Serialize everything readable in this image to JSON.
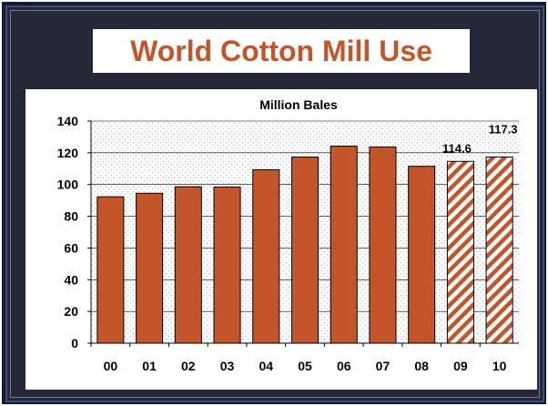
{
  "slide": {
    "title": "World Cotton Mill Use"
  },
  "chart_data": {
    "type": "bar",
    "title": "Million Bales",
    "categories": [
      "00",
      "01",
      "02",
      "03",
      "04",
      "05",
      "06",
      "07",
      "08",
      "09",
      "10"
    ],
    "values": [
      92.3,
      94.5,
      98.6,
      98.4,
      109.3,
      117.3,
      124.2,
      123.7,
      111.5,
      114.6,
      117.3
    ],
    "projected": [
      false,
      false,
      false,
      false,
      false,
      false,
      false,
      false,
      false,
      true,
      true
    ],
    "data_labels": [
      {
        "category": "09",
        "text": "114.6"
      },
      {
        "category": "10",
        "text": "117.3"
      }
    ],
    "ylim": [
      0,
      140
    ],
    "yticks": [
      0,
      20,
      40,
      60,
      80,
      100,
      120,
      140
    ],
    "grid": true,
    "colors": {
      "bar": "#c4552a",
      "stripe": "#c4552a",
      "title": "#c4552a",
      "background": "#252836"
    }
  }
}
